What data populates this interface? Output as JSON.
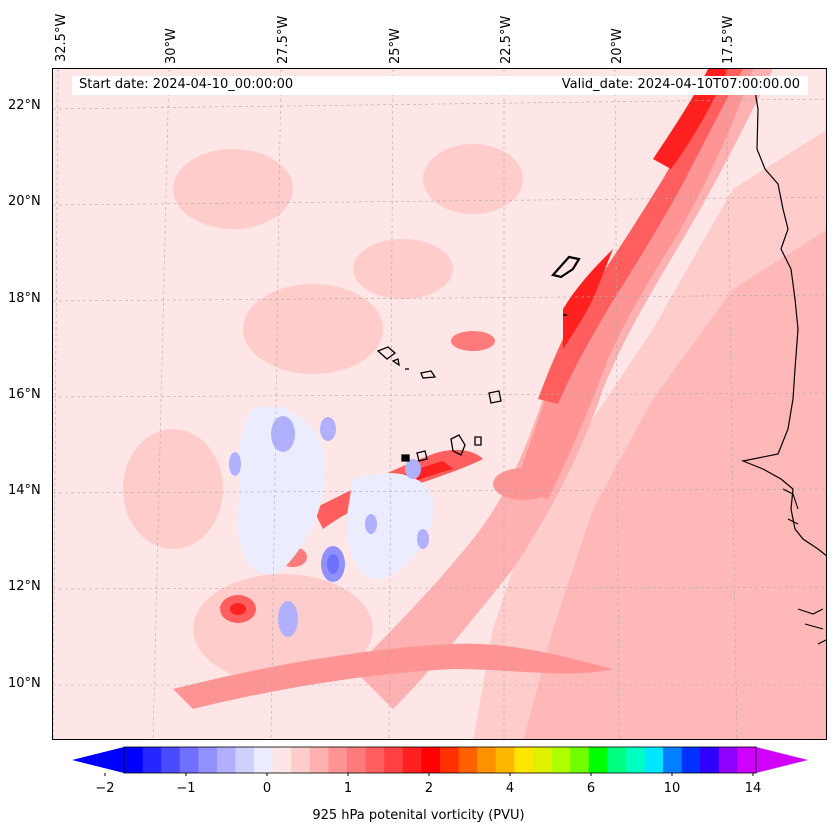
{
  "map": {
    "type": "contour-map",
    "start_date": "Start date: 2024-04-10_00:00:00",
    "valid_date": "Valid_date: 2024-04-10T07:00:00.00",
    "lon_labels": [
      "32.5°W",
      "30°W",
      "27.5°W",
      "25°W",
      "22.5°W",
      "20°W",
      "17.5°W"
    ],
    "lat_labels": [
      "22°N",
      "20°N",
      "18°N",
      "16°N",
      "14°N",
      "12°N",
      "10°N"
    ],
    "extent": {
      "lon": [
        -32.6,
        -15.3
      ],
      "lat": [
        8.9,
        22.8
      ]
    },
    "gridlines": true
  },
  "colorbar": {
    "label": "925 hPa potenital vorticity (PVU)",
    "tick_labels": [
      "−2",
      "−1",
      "0",
      "1",
      "2",
      "4",
      "6",
      "10",
      "14"
    ],
    "extend": "both",
    "colors": [
      "#0000ff",
      "#2525ff",
      "#4a4aff",
      "#7070ff",
      "#9090ff",
      "#b0b0ff",
      "#d0d0ff",
      "#ececff",
      "#ffe6e6",
      "#ffcccc",
      "#ffb0b0",
      "#ff9494",
      "#ff7a7a",
      "#ff5e5e",
      "#ff4040",
      "#ff2020",
      "#ff0000",
      "#ff3000",
      "#ff6000",
      "#ff9000",
      "#ffb800",
      "#ffe600",
      "#e0f000",
      "#b0ff00",
      "#70ff00",
      "#00ff00",
      "#00ff80",
      "#00ffc0",
      "#00e6ff",
      "#0080ff",
      "#0030ff",
      "#3000ff",
      "#9000ff",
      "#d000ff"
    ]
  }
}
